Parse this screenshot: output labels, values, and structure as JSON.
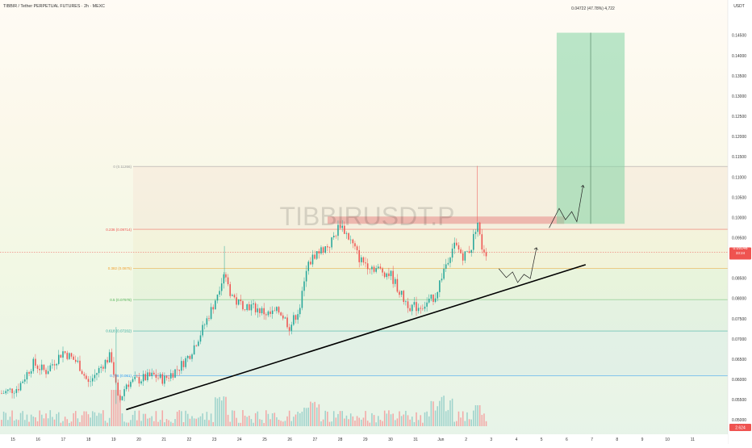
{
  "header": {
    "title": "TIBBIR / Tether PERPETUAL FUTURES · 2h · MEXC",
    "currency": "USDT"
  },
  "watermark": "TIBBIRUSDT.P",
  "colors": {
    "up": "#26a69a",
    "down": "#ef5350",
    "volume_up": "#9fd3cc",
    "volume_down": "#f3a8a6",
    "trendline": "#000000",
    "resistance_zone": "#e57373",
    "target_zone": "#81d4a4",
    "last_price_tag": "#ef5350"
  },
  "last_price": {
    "value": "0.09146",
    "countdown": "33:24"
  },
  "volume_badge": "2.624",
  "target_label": "0.04722 (47.78%) 4,722",
  "chart_data": {
    "type": "candlestick",
    "timeframe": "2h",
    "title": "TIBBIR / Tether PERPETUAL FUTURES · 2h · MEXC",
    "ylabel": "USDT",
    "ylim": [
      0.0485,
      0.1482
    ],
    "y_ticks": [
      "0.14500",
      "0.14000",
      "0.13500",
      "0.13000",
      "0.12500",
      "0.12000",
      "0.11500",
      "0.11000",
      "0.10500",
      "0.10000",
      "0.09500",
      "0.09000",
      "0.08500",
      "0.08000",
      "0.07500",
      "0.07000",
      "0.06500",
      "0.06000",
      "0.05500",
      "0.05000"
    ],
    "x_ticks": [
      "15",
      "16",
      "17",
      "18",
      "19",
      "20",
      "21",
      "22",
      "23",
      "24",
      "25",
      "26",
      "27",
      "28",
      "29",
      "30",
      "31",
      "Jun",
      "2",
      "3",
      "4",
      "5",
      "6",
      "7",
      "8",
      "9",
      "10",
      "11"
    ],
    "fib_levels": [
      {
        "ratio": "0",
        "value": 0.11266,
        "label": "0 (0.11266)",
        "color": "#999999"
      },
      {
        "ratio": "0.236",
        "value": 0.09714,
        "label": "0.236 (0.09714)",
        "color": "#ef5350"
      },
      {
        "ratio": "0.382",
        "value": 0.0875,
        "label": "0.382 (0.0875)",
        "color": "#f0a030"
      },
      {
        "ratio": "0.5",
        "value": 0.07978,
        "label": "0.5 (0.07978)",
        "color": "#4caf50"
      },
      {
        "ratio": "0.618",
        "value": 0.07202,
        "label": "0.618 (0.07202)",
        "color": "#26a69a"
      },
      {
        "ratio": "0.786",
        "value": 0.061,
        "label": "0.786 (0.061)",
        "color": "#2196f3"
      }
    ],
    "trendline": {
      "from": [
        "May 19",
        0.0526
      ],
      "to": [
        "Jun 6",
        0.0884
      ]
    },
    "resistance_zone": {
      "from": "May 27",
      "to": "Jun 5",
      "low": 0.0985,
      "high": 0.1003
    },
    "target_zone": {
      "from": "Jun 5",
      "to": "Jun 7",
      "low": 0.0985,
      "high": 0.1457,
      "change": "0.04722 (47.78%)"
    }
  }
}
